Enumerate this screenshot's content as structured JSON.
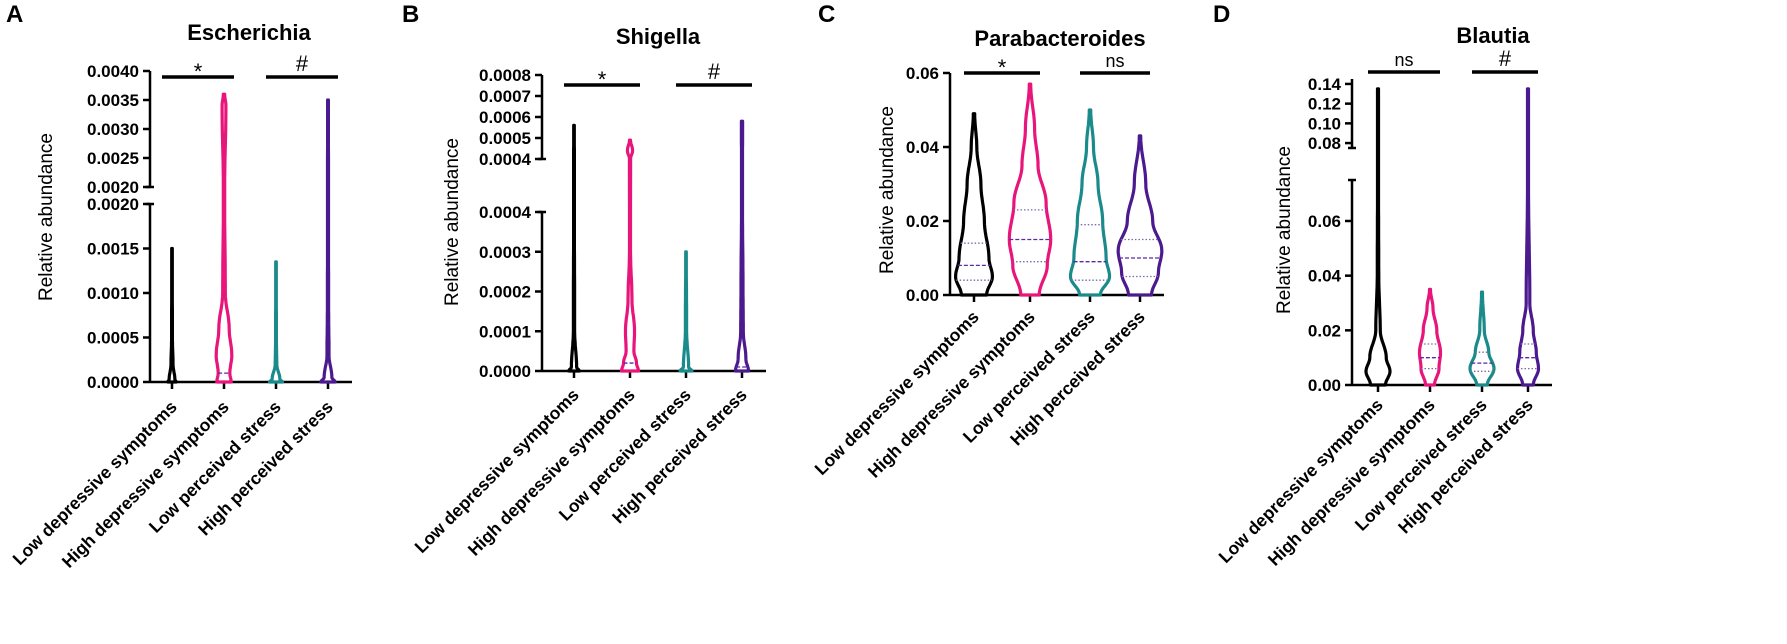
{
  "chart_data": [
    {
      "type": "violin",
      "panel": "A",
      "title": "Escherichia",
      "ylabel": "Relative abundance",
      "categories": [
        "Low depressive symptoms",
        "High depressive symptoms",
        "Low perceived stress",
        "High perceived stress"
      ],
      "colors": [
        "#000000",
        "#e8157a",
        "#1a8a8a",
        "#4b1a8f"
      ],
      "y_segments": [
        {
          "range": [
            0,
            0.002
          ],
          "ticks": [
            "0.0000",
            "0.0005",
            "0.0010",
            "0.0015",
            "0.0020"
          ],
          "tick_values": [
            0,
            0.0005,
            0.001,
            0.0015,
            0.002
          ]
        },
        {
          "range": [
            0.002,
            0.004
          ],
          "ticks": [
            "0.0020",
            "0.0025",
            "0.0030",
            "0.0035",
            "0.0040"
          ],
          "tick_values": [
            0.002,
            0.0025,
            0.003,
            0.0035,
            0.004
          ]
        }
      ],
      "series": [
        {
          "name": "Low depressive symptoms",
          "max": 0.0015,
          "profile": [
            [
              0,
              0.32
            ],
            [
              3e-05,
              0.22
            ],
            [
              0.0002,
              0.08
            ],
            [
              0.0005,
              0.03
            ],
            [
              0.0015,
              0.02
            ]
          ]
        },
        {
          "name": "High depressive symptoms",
          "max": 0.0036,
          "median": 0.0001,
          "profile": [
            [
              0,
              0.55
            ],
            [
              0.0001,
              0.45
            ],
            [
              0.0003,
              0.6
            ],
            [
              0.0006,
              0.4
            ],
            [
              0.001,
              0.1
            ],
            [
              0.002,
              0.05
            ],
            [
              0.0034,
              0.15
            ],
            [
              0.0036,
              0.05
            ]
          ]
        },
        {
          "name": "Low perceived stress",
          "max": 0.00135,
          "profile": [
            [
              0,
              0.5
            ],
            [
              3e-05,
              0.3
            ],
            [
              0.0002,
              0.06
            ],
            [
              0.0005,
              0.03
            ],
            [
              0.00135,
              0.02
            ]
          ]
        },
        {
          "name": "High perceived stress",
          "max": 0.0035,
          "profile": [
            [
              0,
              0.55
            ],
            [
              5e-05,
              0.3
            ],
            [
              0.0003,
              0.08
            ],
            [
              0.0008,
              0.05
            ],
            [
              0.0015,
              0.04
            ],
            [
              0.0035,
              0.03
            ]
          ]
        }
      ],
      "comparisons": [
        {
          "pair": [
            0,
            1
          ],
          "label": "*"
        },
        {
          "pair": [
            2,
            3
          ],
          "label": "#"
        }
      ]
    },
    {
      "type": "violin",
      "panel": "B",
      "title": "Shigella",
      "ylabel": "Relative abundance",
      "categories": [
        "Low depressive symptoms",
        "High depressive symptoms",
        "Low perceived stress",
        "High perceived stress"
      ],
      "colors": [
        "#000000",
        "#e8157a",
        "#1a8a8a",
        "#4b1a8f"
      ],
      "y_segments": [
        {
          "range": [
            0,
            0.0004
          ],
          "ticks": [
            "0.0000",
            "0.0001",
            "0.0002",
            "0.0003",
            "0.0004"
          ],
          "tick_values": [
            0,
            0.0001,
            0.0002,
            0.0003,
            0.0004
          ]
        },
        {
          "range": [
            0.0004,
            0.0008
          ],
          "ticks": [
            "0.0004",
            "0.0005",
            "0.0006",
            "0.0007",
            "0.0008"
          ],
          "tick_values": [
            0.0004,
            0.0005,
            0.0006,
            0.0007,
            0.0008
          ]
        }
      ],
      "series": [
        {
          "name": "Low depressive symptoms",
          "max": 0.00056,
          "profile": [
            [
              0,
              0.4
            ],
            [
              1e-05,
              0.2
            ],
            [
              0.0001,
              0.05
            ],
            [
              0.0004,
              0.03
            ],
            [
              0.00056,
              0.02
            ]
          ]
        },
        {
          "name": "High depressive symptoms",
          "max": 0.00049,
          "median": 2e-05,
          "profile": [
            [
              0,
              0.65
            ],
            [
              2e-05,
              0.5
            ],
            [
              5e-05,
              0.3
            ],
            [
              0.0001,
              0.35
            ],
            [
              0.00018,
              0.15
            ],
            [
              0.0003,
              0.04
            ],
            [
              0.0004,
              0.04
            ],
            [
              0.00044,
              0.2
            ],
            [
              0.00049,
              0.04
            ]
          ]
        },
        {
          "name": "Low perceived stress",
          "max": 0.0003,
          "profile": [
            [
              0,
              0.45
            ],
            [
              1e-05,
              0.2
            ],
            [
              0.0001,
              0.05
            ],
            [
              0.0003,
              0.02
            ]
          ]
        },
        {
          "name": "High perceived stress",
          "max": 0.00058,
          "median": 1e-05,
          "profile": [
            [
              0,
              0.5
            ],
            [
              3e-05,
              0.3
            ],
            [
              0.0001,
              0.1
            ],
            [
              0.0002,
              0.08
            ],
            [
              0.0004,
              0.04
            ],
            [
              0.00058,
              0.05
            ]
          ]
        }
      ],
      "comparisons": [
        {
          "pair": [
            0,
            1
          ],
          "label": "*"
        },
        {
          "pair": [
            2,
            3
          ],
          "label": "#"
        }
      ]
    },
    {
      "type": "violin",
      "panel": "C",
      "title": "Parabacteroides",
      "ylabel": "Relative abundance",
      "categories": [
        "Low depressive symptoms",
        "High depressive symptoms",
        "Low perceived stress",
        "High perceived stress"
      ],
      "colors": [
        "#000000",
        "#e8157a",
        "#1a8a8a",
        "#4b1a8f"
      ],
      "y_segments": [
        {
          "range": [
            0,
            0.06
          ],
          "ticks": [
            "0.00",
            "0.02",
            "0.04",
            "0.06"
          ],
          "tick_values": [
            0,
            0.02,
            0.04,
            0.06
          ]
        }
      ],
      "series": [
        {
          "name": "Low depressive symptoms",
          "max": 0.049,
          "quartiles": [
            0.004,
            0.008,
            0.014
          ],
          "profile": [
            [
              0,
              0.55
            ],
            [
              0.005,
              0.8
            ],
            [
              0.01,
              0.65
            ],
            [
              0.02,
              0.45
            ],
            [
              0.03,
              0.3
            ],
            [
              0.04,
              0.12
            ],
            [
              0.049,
              0.03
            ]
          ]
        },
        {
          "name": "High depressive symptoms",
          "max": 0.057,
          "quartiles": [
            0.009,
            0.015,
            0.023
          ],
          "profile": [
            [
              0,
              0.4
            ],
            [
              0.008,
              0.75
            ],
            [
              0.015,
              0.9
            ],
            [
              0.025,
              0.7
            ],
            [
              0.035,
              0.35
            ],
            [
              0.045,
              0.2
            ],
            [
              0.057,
              0.03
            ]
          ]
        },
        {
          "name": "Low perceived stress",
          "max": 0.05,
          "quartiles": [
            0.004,
            0.009,
            0.019
          ],
          "profile": [
            [
              0,
              0.45
            ],
            [
              0.005,
              0.85
            ],
            [
              0.01,
              0.7
            ],
            [
              0.02,
              0.55
            ],
            [
              0.03,
              0.35
            ],
            [
              0.04,
              0.15
            ],
            [
              0.05,
              0.03
            ]
          ]
        },
        {
          "name": "High perceived stress",
          "max": 0.043,
          "quartiles": [
            0.005,
            0.01,
            0.015
          ],
          "profile": [
            [
              0,
              0.5
            ],
            [
              0.006,
              0.8
            ],
            [
              0.012,
              0.95
            ],
            [
              0.02,
              0.55
            ],
            [
              0.03,
              0.25
            ],
            [
              0.043,
              0.03
            ]
          ]
        }
      ],
      "comparisons": [
        {
          "pair": [
            0,
            1
          ],
          "label": "*"
        },
        {
          "pair": [
            2,
            3
          ],
          "label": "ns"
        }
      ]
    },
    {
      "type": "violin",
      "panel": "D",
      "title": "Blautia",
      "ylabel": "Relative abundance",
      "categories": [
        "Low depressive symptoms",
        "High depressive symptoms",
        "Low perceived stress",
        "High perceived stress"
      ],
      "colors": [
        "#000000",
        "#e8157a",
        "#1a8a8a",
        "#4b1a8f"
      ],
      "y_segments": [
        {
          "range": [
            0,
            0.075
          ],
          "ticks": [
            "0.00",
            "0.02",
            "0.04",
            "0.06"
          ],
          "tick_values": [
            0,
            0.02,
            0.04,
            0.06
          ]
        },
        {
          "range": [
            0.075,
            0.145
          ],
          "ticks": [
            "0.08",
            "0.10",
            "0.12",
            "0.14"
          ],
          "tick_values": [
            0.08,
            0.1,
            0.12,
            0.14
          ]
        }
      ],
      "series": [
        {
          "name": "Low depressive symptoms",
          "max": 0.135,
          "profile": [
            [
              0,
              0.5
            ],
            [
              0.005,
              0.8
            ],
            [
              0.01,
              0.55
            ],
            [
              0.02,
              0.15
            ],
            [
              0.04,
              0.05
            ],
            [
              0.075,
              0.03
            ],
            [
              0.135,
              0.03
            ]
          ]
        },
        {
          "name": "High depressive symptoms",
          "max": 0.035,
          "quartiles": [
            0.006,
            0.01,
            0.015
          ],
          "profile": [
            [
              0,
              0.3
            ],
            [
              0.006,
              0.6
            ],
            [
              0.012,
              0.7
            ],
            [
              0.02,
              0.45
            ],
            [
              0.028,
              0.2
            ],
            [
              0.035,
              0.03
            ]
          ]
        },
        {
          "name": "Low perceived stress",
          "max": 0.034,
          "quartiles": [
            0.005,
            0.008,
            0.012
          ],
          "profile": [
            [
              0,
              0.35
            ],
            [
              0.006,
              0.8
            ],
            [
              0.012,
              0.45
            ],
            [
              0.02,
              0.15
            ],
            [
              0.034,
              0.03
            ]
          ]
        },
        {
          "name": "High perceived stress",
          "max": 0.135,
          "quartiles": [
            0.006,
            0.01,
            0.015
          ],
          "profile": [
            [
              0,
              0.35
            ],
            [
              0.006,
              0.7
            ],
            [
              0.012,
              0.55
            ],
            [
              0.02,
              0.35
            ],
            [
              0.03,
              0.12
            ],
            [
              0.075,
              0.03
            ],
            [
              0.135,
              0.03
            ]
          ]
        }
      ],
      "comparisons": [
        {
          "pair": [
            0,
            1
          ],
          "label": "ns"
        },
        {
          "pair": [
            2,
            3
          ],
          "label": "#"
        }
      ]
    }
  ]
}
